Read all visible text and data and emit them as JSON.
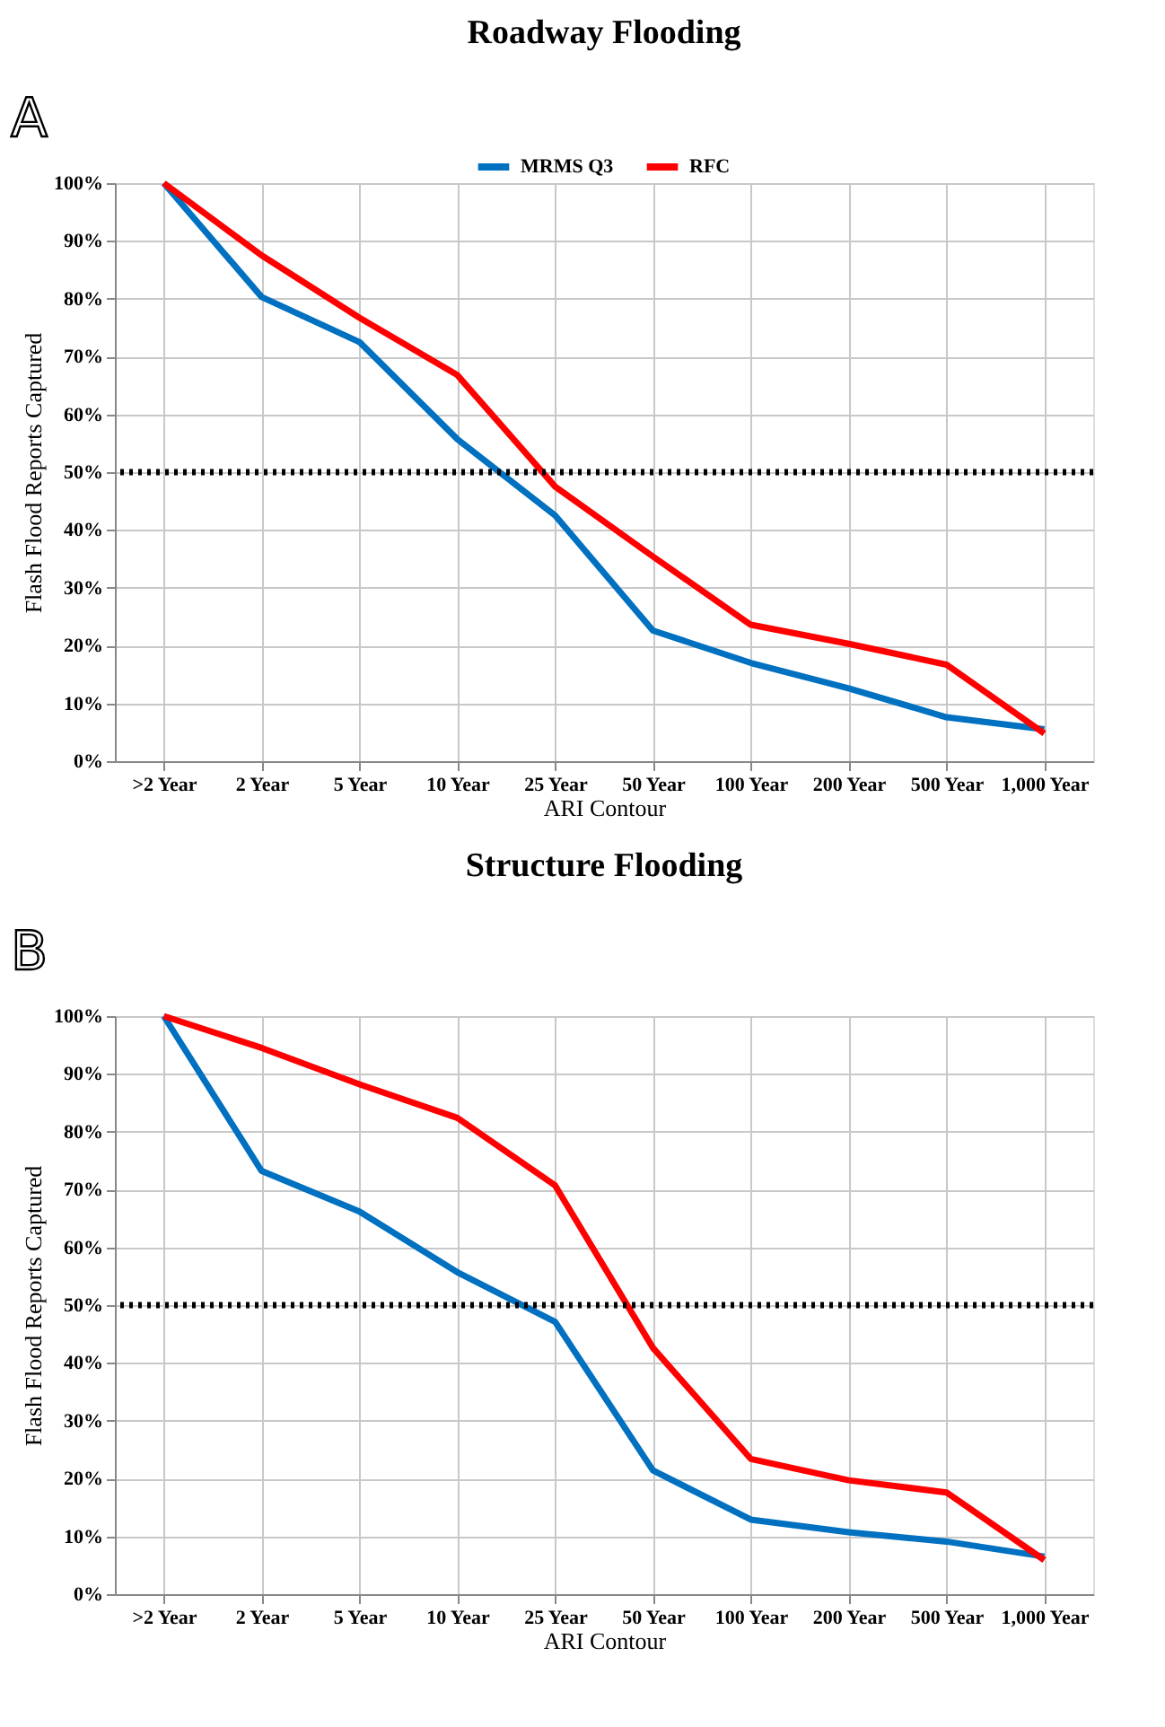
{
  "chart_data": [
    {
      "type": "line",
      "title": "Roadway Flooding",
      "xlabel": "ARI Contour",
      "ylabel": "Flash Flood Reports Captured",
      "annotations": [
        "A"
      ],
      "categories": [
        ">2 Year",
        "2 Year",
        "5 Year",
        "10 Year",
        "25 Year",
        "50 Year",
        "100 Year",
        "200 Year",
        "500 Year",
        "1,000 Year"
      ],
      "series": [
        {
          "name": "MRMS Q3",
          "color": "#0070c0",
          "values": [
            100,
            80.3,
            72.5,
            55.7,
            42.5,
            22.6,
            17.0,
            12.6,
            7.6,
            5.5
          ]
        },
        {
          "name": "RFC",
          "color": "#ff0000",
          "values": [
            100,
            87.5,
            76.7,
            66.8,
            47.5,
            35.4,
            23.6,
            20.3,
            16.7,
            4.8
          ]
        }
      ],
      "ylim": [
        0,
        100
      ],
      "yticks": [
        {
          "value": 0,
          "label": "0%"
        },
        {
          "value": 10,
          "label": "10%"
        },
        {
          "value": 20,
          "label": "20%"
        },
        {
          "value": 30,
          "label": "30%"
        },
        {
          "value": 40,
          "label": "40%"
        },
        {
          "value": 50,
          "label": "50%"
        },
        {
          "value": 60,
          "label": "60%"
        },
        {
          "value": 70,
          "label": "70%"
        },
        {
          "value": 80,
          "label": "80%"
        },
        {
          "value": 90,
          "label": "90%"
        },
        {
          "value": 100,
          "label": "100%"
        }
      ],
      "ref_lines": [
        {
          "axis": "y",
          "value": 50,
          "color": "#000000",
          "line_style": "dotted"
        }
      ],
      "grid": true,
      "legend": "top",
      "line_style": "solid",
      "marker": "none"
    },
    {
      "type": "line",
      "title": "Structure Flooding",
      "xlabel": "ARI Contour",
      "ylabel": "Flash Flood Reports Captured",
      "annotations": [
        "B"
      ],
      "categories": [
        ">2 Year",
        "2 Year",
        "5 Year",
        "10 Year",
        "25 Year",
        "50 Year",
        "100 Year",
        "200 Year",
        "500 Year",
        "1,000 Year"
      ],
      "series": [
        {
          "name": "MRMS Q3",
          "color": "#0070c0",
          "values": [
            100,
            73.2,
            66.2,
            55.7,
            47.1,
            21.4,
            12.9,
            10.7,
            9.1,
            6.5
          ]
        },
        {
          "name": "RFC",
          "color": "#ff0000",
          "values": [
            100,
            94.5,
            88.2,
            82.4,
            70.7,
            42.6,
            23.4,
            19.7,
            17.6,
            5.9
          ]
        }
      ],
      "ylim": [
        0,
        100
      ],
      "yticks": [
        {
          "value": 0,
          "label": "0%"
        },
        {
          "value": 10,
          "label": "10%"
        },
        {
          "value": 20,
          "label": "20%"
        },
        {
          "value": 30,
          "label": "30%"
        },
        {
          "value": 40,
          "label": "40%"
        },
        {
          "value": 50,
          "label": "50%"
        },
        {
          "value": 60,
          "label": "60%"
        },
        {
          "value": 70,
          "label": "70%"
        },
        {
          "value": 80,
          "label": "80%"
        },
        {
          "value": 90,
          "label": "90%"
        },
        {
          "value": 100,
          "label": "100%"
        }
      ],
      "ref_lines": [
        {
          "axis": "y",
          "value": 50,
          "color": "#000000",
          "line_style": "dotted"
        }
      ],
      "grid": true,
      "legend": "top",
      "line_style": "solid",
      "marker": "none"
    }
  ]
}
